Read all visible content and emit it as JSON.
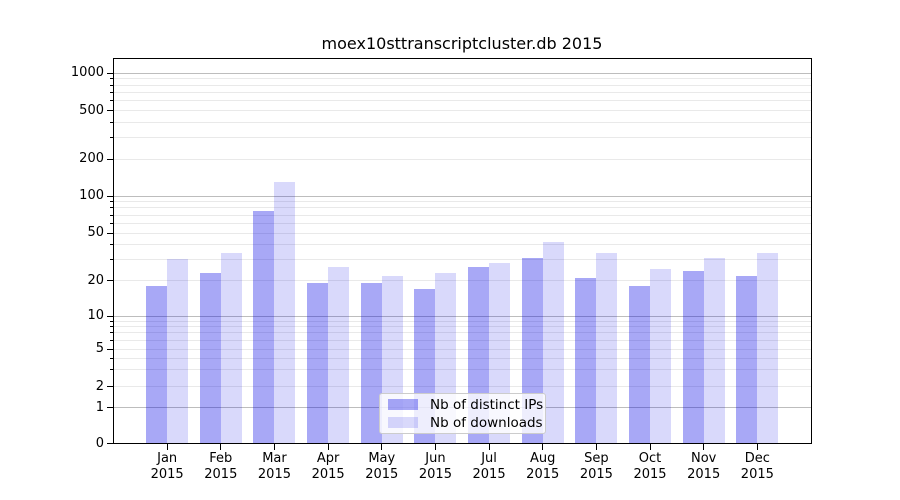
{
  "title": "moex10sttranscriptcluster.db 2015",
  "chart_data": {
    "type": "bar",
    "title": "moex10sttranscriptcluster.db 2015",
    "categories": [
      "Jan 2015",
      "Feb 2015",
      "Mar 2015",
      "Apr 2015",
      "May 2015",
      "Jun 2015",
      "Jul 2015",
      "Aug 2015",
      "Sep 2015",
      "Oct 2015",
      "Nov 2015",
      "Dec 2015"
    ],
    "series": [
      {
        "name": "Nb of distinct IPs",
        "base_color": "#0000E5",
        "alpha": 0.34,
        "rendered_color": "#A9A9F5",
        "values": [
          18,
          23,
          75,
          19,
          19,
          17,
          26,
          31,
          21,
          18,
          24,
          22
        ]
      },
      {
        "name": "Nb of downloads",
        "base_color": "#0000E5",
        "alpha": 0.15,
        "rendered_color": "#D8D8FB",
        "values": [
          30,
          34,
          130,
          26,
          22,
          23,
          28,
          42,
          34,
          25,
          31,
          34
        ]
      }
    ],
    "xlabel": "",
    "ylabel": "",
    "yscale": "symlog",
    "yticks": [
      0,
      1,
      2,
      5,
      10,
      20,
      50,
      100,
      200,
      500,
      1000
    ],
    "ylim": [
      0,
      1300
    ],
    "grid": true,
    "legend_position": "lower center",
    "style": {
      "grid_major_color": "#bdbdbd",
      "grid_minor_color": "#e9e9e9",
      "axis_color": "#000000",
      "background": "#ffffff"
    }
  }
}
